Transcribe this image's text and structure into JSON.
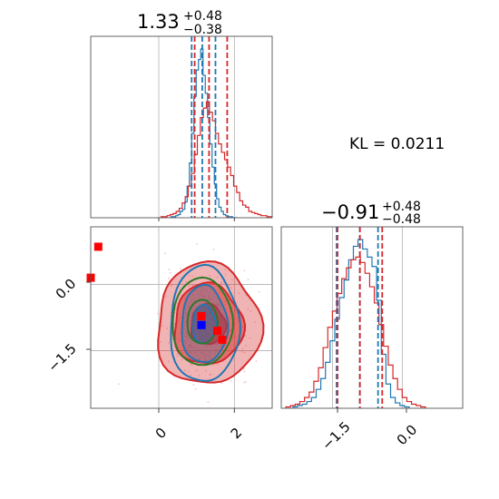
{
  "chart_data": [
    {
      "type": "histogram",
      "panel": "marginal-top",
      "title_value": "1.33",
      "title_plus": "+0.48",
      "title_minus": "−0.38",
      "xlim": [
        -1.8,
        3.0
      ],
      "grid": true,
      "series": [
        {
          "color": "#1f77b4",
          "bin_centers": [
            0.3,
            0.36,
            0.42,
            0.48,
            0.54,
            0.6,
            0.66,
            0.72,
            0.78,
            0.84,
            0.9,
            0.96,
            1.02,
            1.08,
            1.14,
            1.2,
            1.26,
            1.32,
            1.38,
            1.44,
            1.5,
            1.56,
            1.62,
            1.68,
            1.74,
            1.8,
            1.86,
            1.92,
            1.98,
            2.04
          ],
          "counts": [
            0,
            1,
            1,
            2,
            3,
            6,
            8,
            15,
            30,
            52,
            80,
            115,
            140,
            150,
            160,
            135,
            118,
            95,
            70,
            48,
            32,
            18,
            10,
            6,
            3,
            2,
            1,
            1,
            0,
            0
          ],
          "quantiles": [
            0.87,
            1.15,
            1.5
          ]
        },
        {
          "color": "#d62728",
          "bin_centers": [
            0.1,
            0.18,
            0.26,
            0.34,
            0.42,
            0.5,
            0.58,
            0.66,
            0.74,
            0.82,
            0.9,
            0.98,
            1.06,
            1.14,
            1.22,
            1.3,
            1.38,
            1.46,
            1.54,
            1.62,
            1.7,
            1.78,
            1.86,
            1.94,
            2.02,
            2.1,
            2.18,
            2.26,
            2.34,
            2.42,
            2.5,
            2.58,
            2.66,
            2.74,
            2.82,
            2.9,
            2.98
          ],
          "counts": [
            1,
            1,
            2,
            3,
            4,
            6,
            9,
            14,
            20,
            30,
            42,
            60,
            78,
            95,
            104,
            110,
            100,
            92,
            80,
            70,
            62,
            55,
            48,
            40,
            30,
            24,
            16,
            12,
            10,
            6,
            5,
            4,
            3,
            2,
            2,
            1,
            1
          ],
          "quantiles": [
            0.95,
            1.33,
            1.81
          ]
        }
      ]
    },
    {
      "type": "histogram",
      "panel": "marginal-right",
      "title_value": "−0.91",
      "title_plus": "+0.48",
      "title_minus": "−0.48",
      "xlim": [
        -2.6,
        1.3
      ],
      "tick_labels": [
        "−1.5",
        "0.0"
      ],
      "grid": true,
      "series": [
        {
          "color": "#1f77b4",
          "bin_centers": [
            -2.3,
            -2.2,
            -2.1,
            -2.0,
            -1.9,
            -1.8,
            -1.7,
            -1.6,
            -1.5,
            -1.4,
            -1.3,
            -1.2,
            -1.1,
            -1.0,
            -0.9,
            -0.8,
            -0.7,
            -0.6,
            -0.5,
            -0.4,
            -0.3,
            -0.2,
            -0.1,
            0.0,
            0.1
          ],
          "counts": [
            1,
            2,
            3,
            5,
            8,
            14,
            22,
            34,
            50,
            66,
            82,
            95,
            110,
            120,
            125,
            118,
            112,
            105,
            80,
            40,
            18,
            8,
            4,
            2,
            1
          ],
          "quantiles": [
            -1.41,
            -0.91,
            -0.52
          ]
        },
        {
          "color": "#d62728",
          "bin_centers": [
            -2.45,
            -2.35,
            -2.25,
            -2.15,
            -2.05,
            -1.95,
            -1.85,
            -1.75,
            -1.65,
            -1.55,
            -1.45,
            -1.35,
            -1.25,
            -1.15,
            -1.05,
            -0.95,
            -0.85,
            -0.75,
            -0.65,
            -0.55,
            -0.45,
            -0.35,
            -0.25,
            -0.15,
            -0.05,
            0.05,
            0.15,
            0.25,
            0.35,
            0.45
          ],
          "counts": [
            1,
            2,
            3,
            5,
            8,
            12,
            20,
            30,
            45,
            60,
            72,
            85,
            96,
            104,
            110,
            112,
            108,
            100,
            90,
            78,
            62,
            46,
            32,
            22,
            14,
            8,
            5,
            3,
            2,
            1
          ],
          "quantiles": [
            -1.39,
            -0.91,
            -0.43
          ]
        }
      ]
    },
    {
      "type": "contour",
      "panel": "joint",
      "xlim": [
        -1.8,
        3.0
      ],
      "ylim": [
        -2.8,
        1.3
      ],
      "x_tick_labels": [
        "0",
        "2"
      ],
      "y_tick_labels": [
        "0.0",
        "−1.5"
      ],
      "grid": true,
      "distributions": [
        {
          "color": "#d62728",
          "fill": true,
          "center": [
            1.3,
            -0.91
          ],
          "sigma": [
            0.48,
            0.48
          ],
          "levels": [
            1,
            2,
            3
          ]
        },
        {
          "color": "#1f77b4",
          "fill": true,
          "center": [
            1.2,
            -0.91
          ],
          "sigma": [
            0.32,
            0.46
          ],
          "levels": [
            1,
            2,
            3
          ]
        },
        {
          "color": "#2a7a2a",
          "fill": false,
          "center": [
            1.15,
            -0.85
          ],
          "sigma": [
            0.42,
            0.52
          ],
          "levels": [
            1,
            2
          ]
        }
      ],
      "markers": [
        {
          "color": "#ff0000",
          "x": -1.6,
          "y": 0.85
        },
        {
          "color": "#ff0000",
          "x": -1.8,
          "y": 0.15
        },
        {
          "color": "#ff0000",
          "x": 1.13,
          "y": -0.72
        },
        {
          "color": "#ff0000",
          "x": 1.55,
          "y": -1.05
        },
        {
          "color": "#ff0000",
          "x": 1.68,
          "y": -1.25
        },
        {
          "color": "#0000ff",
          "x": 1.13,
          "y": -0.92
        }
      ]
    }
  ],
  "annotation": {
    "kl_text": "KL = 0.0211"
  }
}
